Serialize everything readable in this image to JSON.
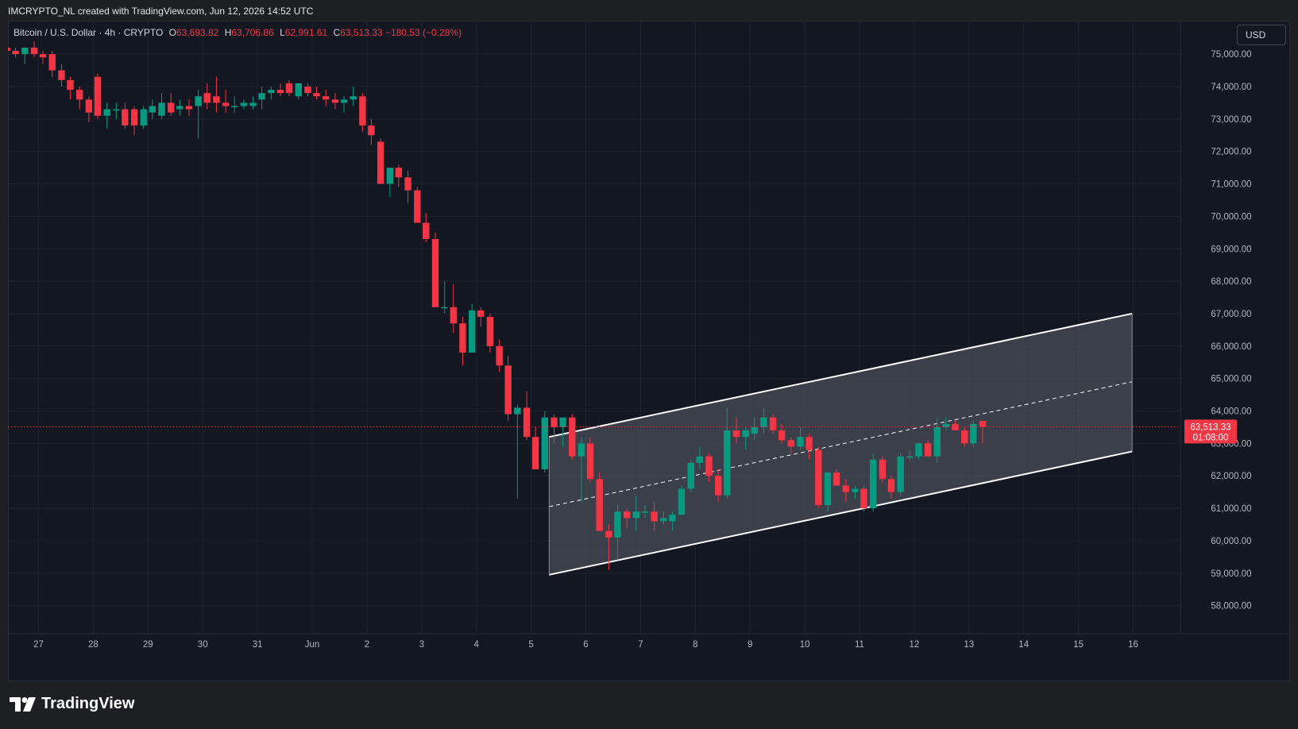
{
  "caption": "IMCRYPTO_NL created with TradingView.com, Jun 12, 2026 14:52 UTC",
  "legend": {
    "symbol": "Bitcoin / U.S. Dollar · 4h · CRYPTO",
    "open_label": "O",
    "open": "63,693.82",
    "high_label": "H",
    "high": "63,706.86",
    "low_label": "L",
    "low": "62,991.61",
    "close_label": "C",
    "close": "63,513.33",
    "change": "−180.53 (−0.28%)"
  },
  "currency": "USD",
  "footer_brand": "TradingView",
  "colors": {
    "background": "#131722",
    "up": "#089981",
    "down": "#f23645",
    "grid": "#1f2331",
    "axis_text": "#b2b5be",
    "channel_fill": "#4a4d57",
    "channel_line": "#ffffff"
  },
  "chart_data": {
    "type": "candlestick",
    "interval": "4h",
    "y_tick_labels": [
      "58,000.00",
      "59,000.00",
      "60,000.00",
      "61,000.00",
      "62,000.00",
      "63,000.00",
      "64,000.00",
      "65,000.00",
      "66,000.00",
      "67,000.00",
      "68,000.00",
      "69,000.00",
      "70,000.00",
      "71,000.00",
      "72,000.00",
      "73,000.00",
      "74,000.00",
      "75,000.00"
    ],
    "y_tick_values": [
      58000,
      59000,
      60000,
      61000,
      62000,
      63000,
      64000,
      65000,
      66000,
      67000,
      68000,
      69000,
      70000,
      71000,
      72000,
      73000,
      74000,
      75000
    ],
    "x_tick_labels": [
      "27",
      "28",
      "29",
      "30",
      "31",
      "Jun",
      "2",
      "3",
      "4",
      "5",
      "6",
      "7",
      "8",
      "9",
      "10",
      "11",
      "12",
      "13",
      "14",
      "15",
      "16"
    ],
    "x_tick_days": [
      -5,
      -4,
      -3,
      -2,
      -1,
      0,
      1,
      2,
      3,
      4,
      5,
      6,
      7,
      8,
      9,
      10,
      11,
      12,
      13,
      14,
      15
    ],
    "last_price_label": "63,513.33",
    "last_price": 63513.33,
    "countdown": "01:08:00",
    "channel": {
      "upper": [
        [
          4.33,
          63200
        ],
        [
          14.98,
          67000
        ]
      ],
      "lower": [
        [
          4.33,
          58950
        ],
        [
          14.98,
          62750
        ]
      ],
      "mid": [
        [
          4.33,
          61050
        ],
        [
          14.98,
          64900
        ]
      ]
    },
    "candles": [
      {
        "d": -5.58,
        "o": 75200,
        "h": 75400,
        "l": 75000,
        "c": 75100
      },
      {
        "d": -5.42,
        "o": 75100,
        "h": 75200,
        "l": 74900,
        "c": 75000
      },
      {
        "d": -5.25,
        "o": 75000,
        "h": 75200,
        "l": 74700,
        "c": 75200
      },
      {
        "d": -5.08,
        "o": 75200,
        "h": 75400,
        "l": 74900,
        "c": 75000
      },
      {
        "d": -4.92,
        "o": 75000,
        "h": 75100,
        "l": 74700,
        "c": 74900
      },
      {
        "d": -4.75,
        "o": 75000,
        "h": 75100,
        "l": 74300,
        "c": 74500
      },
      {
        "d": -4.58,
        "o": 74500,
        "h": 74700,
        "l": 74000,
        "c": 74200
      },
      {
        "d": -4.42,
        "o": 74200,
        "h": 74300,
        "l": 73600,
        "c": 73900
      },
      {
        "d": -4.25,
        "o": 73900,
        "h": 74000,
        "l": 73300,
        "c": 73600
      },
      {
        "d": -4.08,
        "o": 73600,
        "h": 73700,
        "l": 72900,
        "c": 73200
      },
      {
        "d": -3.92,
        "o": 74300,
        "h": 74400,
        "l": 73000,
        "c": 73100
      },
      {
        "d": -3.75,
        "o": 73100,
        "h": 73500,
        "l": 72700,
        "c": 73300
      },
      {
        "d": -3.58,
        "o": 73300,
        "h": 73500,
        "l": 73000,
        "c": 73300
      },
      {
        "d": -3.42,
        "o": 73300,
        "h": 73500,
        "l": 72700,
        "c": 72800
      },
      {
        "d": -3.25,
        "o": 73300,
        "h": 73400,
        "l": 72500,
        "c": 72800
      },
      {
        "d": -3.08,
        "o": 72800,
        "h": 73400,
        "l": 72700,
        "c": 73300
      },
      {
        "d": -2.92,
        "o": 73200,
        "h": 73600,
        "l": 73000,
        "c": 73400
      },
      {
        "d": -2.75,
        "o": 73100,
        "h": 73800,
        "l": 73000,
        "c": 73500
      },
      {
        "d": -2.58,
        "o": 73500,
        "h": 73800,
        "l": 73100,
        "c": 73200
      },
      {
        "d": -2.42,
        "o": 73300,
        "h": 73600,
        "l": 73100,
        "c": 73400
      },
      {
        "d": -2.25,
        "o": 73400,
        "h": 73600,
        "l": 73100,
        "c": 73300
      },
      {
        "d": -2.08,
        "o": 73400,
        "h": 73900,
        "l": 72400,
        "c": 73700
      },
      {
        "d": -1.92,
        "o": 73800,
        "h": 74100,
        "l": 73300,
        "c": 73500
      },
      {
        "d": -1.75,
        "o": 73700,
        "h": 74300,
        "l": 73200,
        "c": 73500
      },
      {
        "d": -1.58,
        "o": 73500,
        "h": 73900,
        "l": 73200,
        "c": 73400
      },
      {
        "d": -1.42,
        "o": 73400,
        "h": 73700,
        "l": 73200,
        "c": 73400
      },
      {
        "d": -1.25,
        "o": 73400,
        "h": 73600,
        "l": 73300,
        "c": 73500
      },
      {
        "d": -1.08,
        "o": 73400,
        "h": 73700,
        "l": 73300,
        "c": 73500
      },
      {
        "d": -0.92,
        "o": 73600,
        "h": 74000,
        "l": 73300,
        "c": 73800
      },
      {
        "d": -0.75,
        "o": 73800,
        "h": 74000,
        "l": 73600,
        "c": 73900
      },
      {
        "d": -0.58,
        "o": 73900,
        "h": 74100,
        "l": 73700,
        "c": 73800
      },
      {
        "d": -0.42,
        "o": 74100,
        "h": 74200,
        "l": 73700,
        "c": 73800
      },
      {
        "d": -0.25,
        "o": 73700,
        "h": 74100,
        "l": 73600,
        "c": 74100
      },
      {
        "d": -0.08,
        "o": 74000,
        "h": 74100,
        "l": 73700,
        "c": 73800
      },
      {
        "d": 0.08,
        "o": 73800,
        "h": 74000,
        "l": 73600,
        "c": 73700
      },
      {
        "d": 0.25,
        "o": 73700,
        "h": 73900,
        "l": 73400,
        "c": 73600
      },
      {
        "d": 0.42,
        "o": 73600,
        "h": 73800,
        "l": 73300,
        "c": 73500
      },
      {
        "d": 0.58,
        "o": 73500,
        "h": 73700,
        "l": 73200,
        "c": 73600
      },
      {
        "d": 0.75,
        "o": 73600,
        "h": 74000,
        "l": 73400,
        "c": 73700
      },
      {
        "d": 0.92,
        "o": 73700,
        "h": 73800,
        "l": 72600,
        "c": 72800
      },
      {
        "d": 1.08,
        "o": 72800,
        "h": 73000,
        "l": 72200,
        "c": 72500
      },
      {
        "d": 1.25,
        "o": 72300,
        "h": 72400,
        "l": 71000,
        "c": 71000
      },
      {
        "d": 1.42,
        "o": 71000,
        "h": 71400,
        "l": 70600,
        "c": 71500
      },
      {
        "d": 1.58,
        "o": 71500,
        "h": 71600,
        "l": 70900,
        "c": 71200
      },
      {
        "d": 1.75,
        "o": 71200,
        "h": 71400,
        "l": 70400,
        "c": 70800
      },
      {
        "d": 1.92,
        "o": 70800,
        "h": 70900,
        "l": 69800,
        "c": 69800
      },
      {
        "d": 2.08,
        "o": 69800,
        "h": 70100,
        "l": 69200,
        "c": 69300
      },
      {
        "d": 2.25,
        "o": 69300,
        "h": 69500,
        "l": 67200,
        "c": 67200
      },
      {
        "d": 2.42,
        "o": 67200,
        "h": 68000,
        "l": 67000,
        "c": 67200
      },
      {
        "d": 2.58,
        "o": 67200,
        "h": 67900,
        "l": 66400,
        "c": 66700
      },
      {
        "d": 2.75,
        "o": 66700,
        "h": 66900,
        "l": 65400,
        "c": 65800
      },
      {
        "d": 2.92,
        "o": 65800,
        "h": 67300,
        "l": 65800,
        "c": 67100
      },
      {
        "d": 3.08,
        "o": 67100,
        "h": 67200,
        "l": 66600,
        "c": 66900
      },
      {
        "d": 3.25,
        "o": 66900,
        "h": 67000,
        "l": 65800,
        "c": 66000
      },
      {
        "d": 3.42,
        "o": 66000,
        "h": 66200,
        "l": 65200,
        "c": 65400
      },
      {
        "d": 3.58,
        "o": 65400,
        "h": 65700,
        "l": 63700,
        "c": 63900
      },
      {
        "d": 3.75,
        "o": 63900,
        "h": 64200,
        "l": 61300,
        "c": 64100
      },
      {
        "d": 3.92,
        "o": 64100,
        "h": 64600,
        "l": 63100,
        "c": 63200
      },
      {
        "d": 4.08,
        "o": 63200,
        "h": 63500,
        "l": 62200,
        "c": 62200
      },
      {
        "d": 4.25,
        "o": 62200,
        "h": 64000,
        "l": 62100,
        "c": 63800
      },
      {
        "d": 4.42,
        "o": 63800,
        "h": 63900,
        "l": 63000,
        "c": 63500
      },
      {
        "d": 4.58,
        "o": 63500,
        "h": 63800,
        "l": 62900,
        "c": 63800
      },
      {
        "d": 4.75,
        "o": 63800,
        "h": 63900,
        "l": 62500,
        "c": 62600
      },
      {
        "d": 4.92,
        "o": 62600,
        "h": 63200,
        "l": 61200,
        "c": 63000
      },
      {
        "d": 5.08,
        "o": 63000,
        "h": 63200,
        "l": 61800,
        "c": 61900
      },
      {
        "d": 5.25,
        "o": 61900,
        "h": 62100,
        "l": 60300,
        "c": 60300
      },
      {
        "d": 5.42,
        "o": 60300,
        "h": 60500,
        "l": 59100,
        "c": 60100
      },
      {
        "d": 5.58,
        "o": 60100,
        "h": 61100,
        "l": 59400,
        "c": 60900
      },
      {
        "d": 5.75,
        "o": 60900,
        "h": 61000,
        "l": 60400,
        "c": 60700
      },
      {
        "d": 5.92,
        "o": 60700,
        "h": 61400,
        "l": 60300,
        "c": 60900
      },
      {
        "d": 6.08,
        "o": 60900,
        "h": 61100,
        "l": 60700,
        "c": 60900
      },
      {
        "d": 6.25,
        "o": 60900,
        "h": 61200,
        "l": 60300,
        "c": 60600
      },
      {
        "d": 6.42,
        "o": 60600,
        "h": 60900,
        "l": 60500,
        "c": 60700
      },
      {
        "d": 6.58,
        "o": 60600,
        "h": 60900,
        "l": 60300,
        "c": 60800
      },
      {
        "d": 6.75,
        "o": 60800,
        "h": 61700,
        "l": 60800,
        "c": 61600
      },
      {
        "d": 6.92,
        "o": 61600,
        "h": 62500,
        "l": 61500,
        "c": 62400
      },
      {
        "d": 7.08,
        "o": 62400,
        "h": 62900,
        "l": 62200,
        "c": 62600
      },
      {
        "d": 7.25,
        "o": 62600,
        "h": 62700,
        "l": 61800,
        "c": 62000
      },
      {
        "d": 7.42,
        "o": 62000,
        "h": 62200,
        "l": 61200,
        "c": 61400
      },
      {
        "d": 7.58,
        "o": 61400,
        "h": 64100,
        "l": 61300,
        "c": 63400
      },
      {
        "d": 7.75,
        "o": 63400,
        "h": 63800,
        "l": 63000,
        "c": 63200
      },
      {
        "d": 7.92,
        "o": 63200,
        "h": 63500,
        "l": 62800,
        "c": 63400
      },
      {
        "d": 8.08,
        "o": 63300,
        "h": 63800,
        "l": 63100,
        "c": 63500
      },
      {
        "d": 8.25,
        "o": 63500,
        "h": 64100,
        "l": 63300,
        "c": 63800
      },
      {
        "d": 8.42,
        "o": 63800,
        "h": 63900,
        "l": 63300,
        "c": 63400
      },
      {
        "d": 8.58,
        "o": 63400,
        "h": 63600,
        "l": 63000,
        "c": 63100
      },
      {
        "d": 8.75,
        "o": 63100,
        "h": 63200,
        "l": 62700,
        "c": 62900
      },
      {
        "d": 8.92,
        "o": 62900,
        "h": 63500,
        "l": 62800,
        "c": 63200
      },
      {
        "d": 9.08,
        "o": 63200,
        "h": 63300,
        "l": 62500,
        "c": 62800
      },
      {
        "d": 9.25,
        "o": 62800,
        "h": 62900,
        "l": 61000,
        "c": 61100
      },
      {
        "d": 9.42,
        "o": 61100,
        "h": 62100,
        "l": 60900,
        "c": 62100
      },
      {
        "d": 9.58,
        "o": 62100,
        "h": 62200,
        "l": 61700,
        "c": 61700
      },
      {
        "d": 9.75,
        "o": 61700,
        "h": 61900,
        "l": 61200,
        "c": 61500
      },
      {
        "d": 9.92,
        "o": 61500,
        "h": 61700,
        "l": 61300,
        "c": 61600
      },
      {
        "d": 10.08,
        "o": 61600,
        "h": 61700,
        "l": 60900,
        "c": 61000
      },
      {
        "d": 10.25,
        "o": 61000,
        "h": 62700,
        "l": 60900,
        "c": 62500
      },
      {
        "d": 10.42,
        "o": 62500,
        "h": 62600,
        "l": 61800,
        "c": 61900
      },
      {
        "d": 10.58,
        "o": 61900,
        "h": 62000,
        "l": 61300,
        "c": 61500
      },
      {
        "d": 10.75,
        "o": 61500,
        "h": 62700,
        "l": 61400,
        "c": 62600
      },
      {
        "d": 10.92,
        "o": 62600,
        "h": 62800,
        "l": 62500,
        "c": 62600
      },
      {
        "d": 11.08,
        "o": 62600,
        "h": 63000,
        "l": 62500,
        "c": 63000
      },
      {
        "d": 11.25,
        "o": 63000,
        "h": 63100,
        "l": 62600,
        "c": 62600
      },
      {
        "d": 11.42,
        "o": 62600,
        "h": 63800,
        "l": 62400,
        "c": 63500
      },
      {
        "d": 11.58,
        "o": 63500,
        "h": 63800,
        "l": 63400,
        "c": 63600
      },
      {
        "d": 11.75,
        "o": 63600,
        "h": 63700,
        "l": 63400,
        "c": 63400
      },
      {
        "d": 11.92,
        "o": 63400,
        "h": 63500,
        "l": 62900,
        "c": 63000
      },
      {
        "d": 12.08,
        "o": 63000,
        "h": 63700,
        "l": 62900,
        "c": 63600
      },
      {
        "d": 12.25,
        "o": 63693.82,
        "h": 63706.86,
        "l": 62991.61,
        "c": 63513.33
      }
    ]
  }
}
